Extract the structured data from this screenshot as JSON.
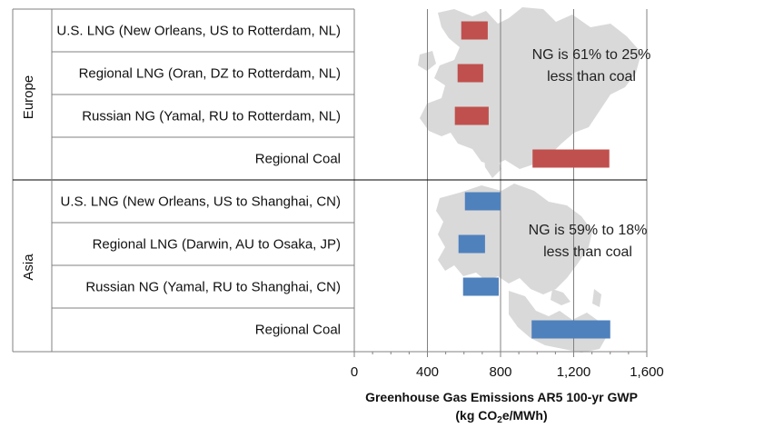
{
  "chart_data": {
    "type": "bar",
    "orientation": "horizontal-range",
    "xlabel_line1": "Greenhouse Gas Emissions AR5 100-yr GWP",
    "xlabel_line2_pre": "(kg CO",
    "xlabel_line2_sub": "2",
    "xlabel_line2_post": "e/MWh)",
    "xlim": [
      0,
      1600
    ],
    "xticks": [
      0,
      400,
      800,
      1200,
      1600
    ],
    "xtick_labels": [
      "0",
      "400",
      "800",
      "1,200",
      "1,600"
    ],
    "grid": "vertical-major",
    "groups": [
      {
        "name": "Europe",
        "color": "#c0504d",
        "background_image": "europe-map-silhouette",
        "annotation_lines": [
          "NG is 61% to 25%",
          "less than coal"
        ],
        "categories": [
          "U.S. LNG (New Orleans, US to Rotterdam, NL)",
          "Regional LNG (Oran, DZ to Rotterdam, NL)",
          "Russian NG (Yamal, RU to Rotterdam, NL)",
          "Regional Coal"
        ],
        "ranges": [
          [
            585,
            730
          ],
          [
            565,
            705
          ],
          [
            550,
            735
          ],
          [
            975,
            1395
          ]
        ]
      },
      {
        "name": "Asia",
        "color": "#4f81bd",
        "background_image": "asia-map-silhouette",
        "annotation_lines": [
          "NG is 59% to 18%",
          "less than coal"
        ],
        "categories": [
          "U.S. LNG (New Orleans, US to Shanghai, CN)",
          "Regional LNG (Darwin, AU to Osaka, JP)",
          "Russian NG (Yamal, RU to Shanghai, CN)",
          "Regional Coal"
        ],
        "ranges": [
          [
            605,
            800
          ],
          [
            570,
            715
          ],
          [
            595,
            790
          ],
          [
            970,
            1400
          ]
        ]
      }
    ],
    "colors": {
      "europe": "#c0504d",
      "asia": "#4f81bd",
      "map": "#d9d9d9",
      "grid": "#808080"
    }
  }
}
